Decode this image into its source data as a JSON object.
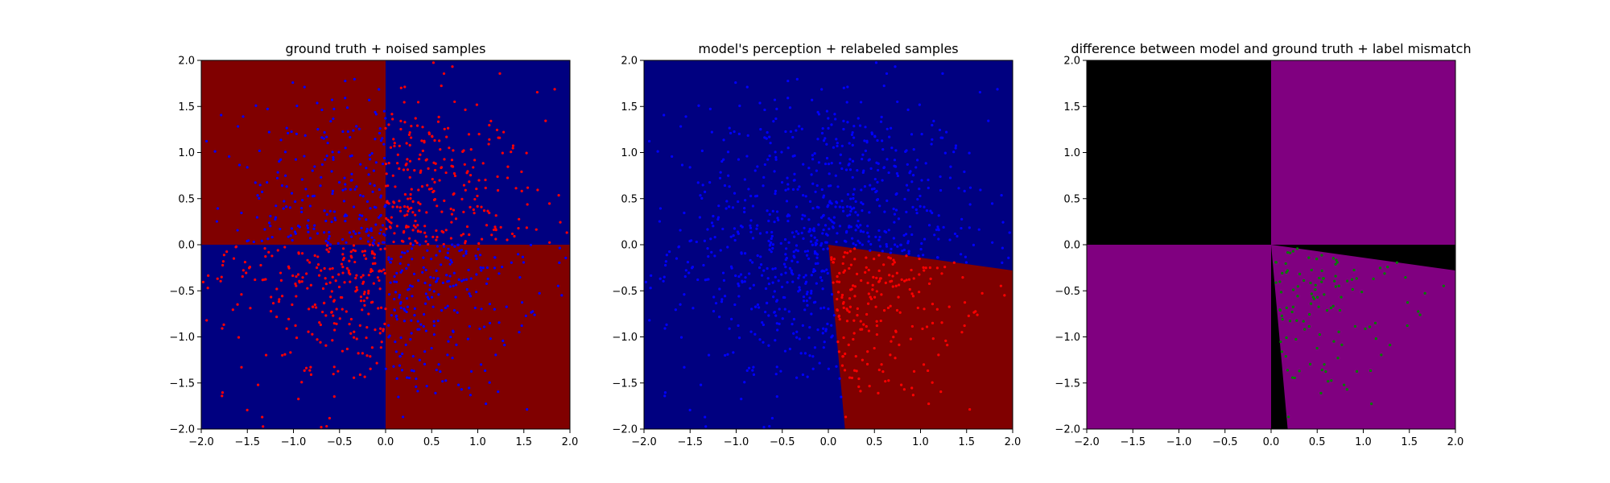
{
  "chart_data": [
    {
      "type": "scatter",
      "title": "ground truth + noised samples",
      "xlim": [
        -2.0,
        2.0
      ],
      "ylim": [
        -2.0,
        2.0
      ],
      "xticks": [
        "−2.0",
        "−1.5",
        "−1.0",
        "−0.5",
        "0.0",
        "0.5",
        "1.0",
        "1.5",
        "2.0"
      ],
      "yticks": [
        "−2.0",
        "−1.5",
        "−1.0",
        "−0.5",
        "0.0",
        "0.5",
        "1.0",
        "1.5",
        "2.0"
      ],
      "background_regions": "XOR quadrants: red where x<0,y>0 and x>0,y<0; blue elsewhere",
      "region_colors": {
        "class_a": "#800000",
        "class_b": "#000080"
      },
      "point_colors": {
        "red": "#ff0000",
        "blue": "#0000ff"
      },
      "grid": false
    },
    {
      "type": "scatter",
      "title": "model's perception + relabeled samples",
      "xlim": [
        -2.0,
        2.0
      ],
      "ylim": [
        -2.0,
        2.0
      ],
      "xticks": [
        "−2.0",
        "−1.5",
        "−1.0",
        "−0.5",
        "0.0",
        "0.5",
        "1.0",
        "1.5",
        "2.0"
      ],
      "yticks": [
        "−2.0",
        "−1.5",
        "−1.0",
        "−0.5",
        "0.0",
        "0.5",
        "1.0",
        "1.5",
        "2.0"
      ],
      "background_regions": "blue everywhere except red wedge bounded by x from 0 to 0.18 and line from (0,0) to (2,-0.28)",
      "region_colors": {
        "class_a": "#800000",
        "class_b": "#000080"
      },
      "point_colors": {
        "red": "#ff0000",
        "blue": "#0000ff"
      },
      "grid": false
    },
    {
      "type": "scatter",
      "title": "difference between model and ground truth + label mismatch",
      "xlim": [
        -2.0,
        2.0
      ],
      "ylim": [
        -2.0,
        2.0
      ],
      "xticks": [
        "−2.0",
        "−1.5",
        "−1.0",
        "−0.5",
        "0.0",
        "0.5",
        "1.0",
        "1.5",
        "2.0"
      ],
      "yticks": [
        "−2.0",
        "−1.5",
        "−1.0",
        "−0.5",
        "0.0",
        "0.5",
        "1.0",
        "1.5",
        "2.0"
      ],
      "background_regions": "black where model agrees with ground truth, purple where it differs",
      "region_colors": {
        "agree": "#000000",
        "differ": "#800080"
      },
      "point_colors": {
        "mismatch": "#008000"
      },
      "grid": false
    }
  ]
}
